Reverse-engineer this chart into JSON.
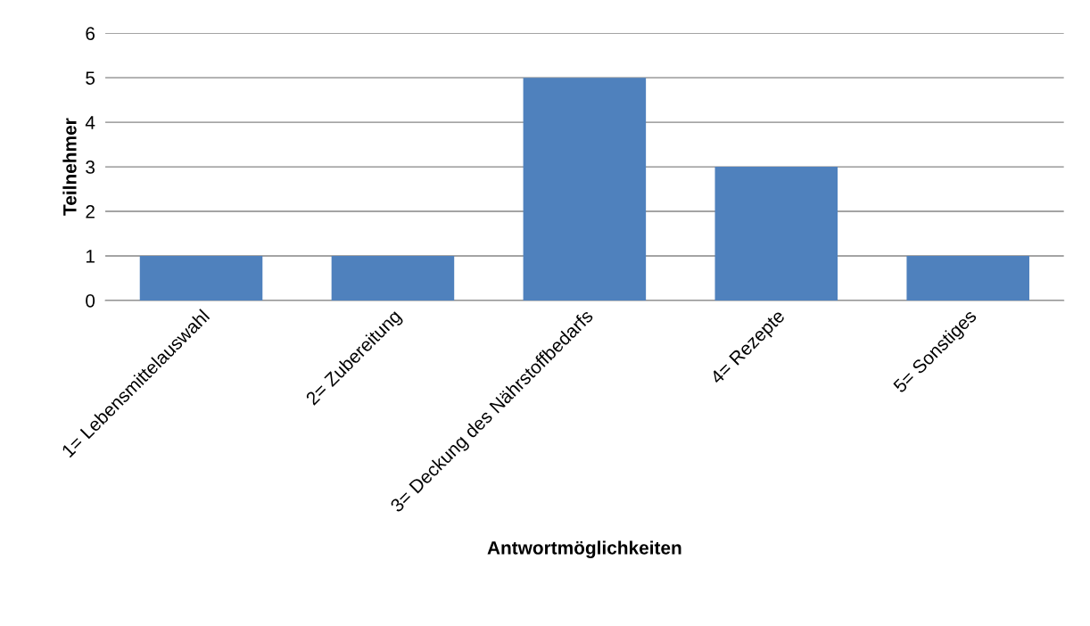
{
  "chart_data": {
    "type": "bar",
    "xlabel": "Antwortmöglichkeiten",
    "ylabel": "Teilnehmer",
    "categories": [
      "1= Lebensmittelauswahl",
      "2= Zubereitung",
      "3= Deckung des Nährstoffbedarfs",
      "4= Rezepte",
      "5= Sonstiges"
    ],
    "values": [
      1,
      1,
      5,
      3,
      1
    ],
    "color": "#4f81bd",
    "ylim": [
      0,
      6
    ],
    "yticks": [
      0,
      1,
      2,
      3,
      4,
      5,
      6
    ],
    "grid": "y",
    "legend": false
  }
}
